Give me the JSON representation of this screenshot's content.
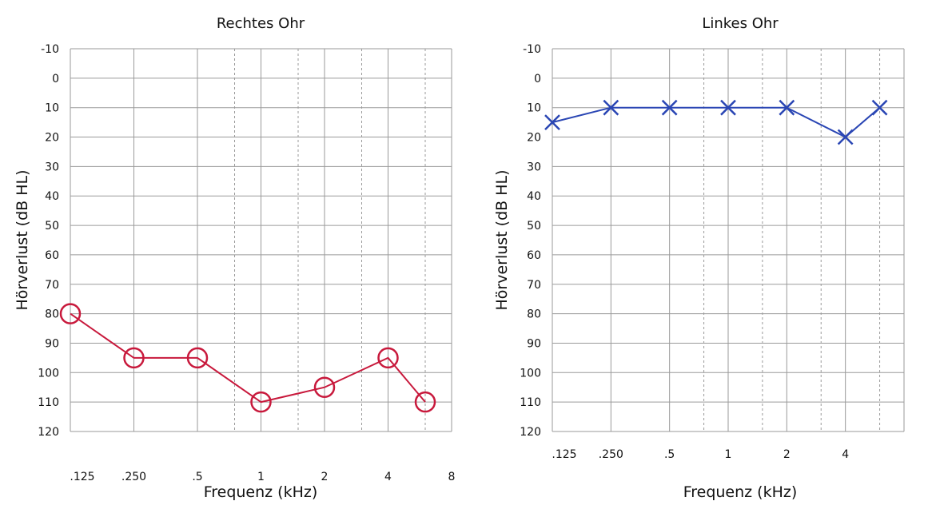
{
  "chart_data": [
    {
      "type": "line",
      "title": "Rechtes Ohr",
      "xlabel": "Frequenz (kHz)",
      "ylabel": "Hörverlust (dB HL)",
      "x_tick_labels": [
        ".125",
        ".250",
        ".5",
        "1",
        "2",
        "4",
        "8"
      ],
      "y_ticks": [
        -10,
        0,
        10,
        20,
        30,
        40,
        50,
        60,
        70,
        80,
        90,
        100,
        110,
        120
      ],
      "ylim": [
        -10,
        120
      ],
      "y_inverted": true,
      "x_scale": "log2",
      "grid": true,
      "color": "#c8193c",
      "marker": "circle",
      "points": [
        {
          "x": 0.125,
          "y": 80
        },
        {
          "x": 0.25,
          "y": 95
        },
        {
          "x": 0.5,
          "y": 95
        },
        {
          "x": 1,
          "y": 110
        },
        {
          "x": 2,
          "y": 105
        },
        {
          "x": 4,
          "y": 95
        },
        {
          "x": 6,
          "y": 110
        }
      ]
    },
    {
      "type": "line",
      "title": "Linkes Ohr",
      "xlabel": "Frequenz (kHz)",
      "ylabel": "Hörverlust (dB HL)",
      "x_tick_labels": [
        ".125",
        ".250",
        ".5",
        "1",
        "2",
        "4"
      ],
      "y_ticks": [
        -10,
        0,
        10,
        20,
        30,
        40,
        50,
        60,
        70,
        80,
        90,
        100,
        110,
        120
      ],
      "ylim": [
        -10,
        120
      ],
      "y_inverted": true,
      "x_scale": "log2",
      "grid": true,
      "color": "#2a46b4",
      "marker": "x",
      "points": [
        {
          "x": 0.125,
          "y": 15
        },
        {
          "x": 0.25,
          "y": 10
        },
        {
          "x": 0.5,
          "y": 10
        },
        {
          "x": 1,
          "y": 10
        },
        {
          "x": 2,
          "y": 10
        },
        {
          "x": 4,
          "y": 20
        },
        {
          "x": 6,
          "y": 10
        }
      ]
    }
  ]
}
